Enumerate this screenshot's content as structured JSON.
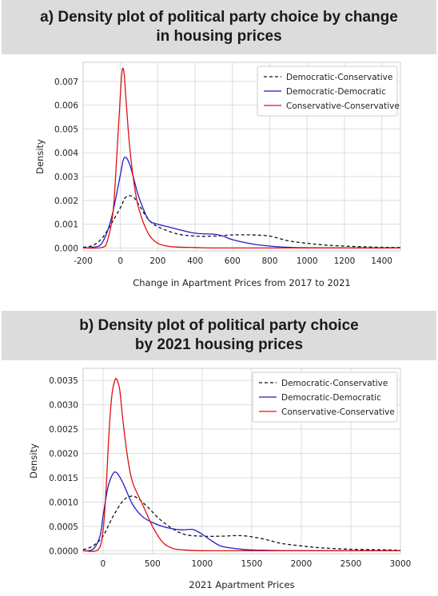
{
  "banners": {
    "a": [
      "a) Density plot of political party choice by change",
      "in housing prices"
    ],
    "b": [
      "b) Density plot of political party choice",
      "by 2021 housing prices"
    ]
  },
  "colors": {
    "dem_cons": "#111111",
    "dem_dem": "#1f1fc8",
    "cons_cons": "#e01010",
    "grid": "#dddddd",
    "banner_bg": "#dcdcdc"
  },
  "chart_data": [
    {
      "type": "line",
      "xlabel": "Change in Apartment Prices from 2017 to 2021",
      "ylabel": "Density",
      "xlim": [
        -200,
        1500
      ],
      "ylim": [
        -0.00012,
        0.0078
      ],
      "xticks": [
        -200,
        0,
        200,
        400,
        600,
        800,
        1000,
        1200,
        1400
      ],
      "yticks": [
        0.0,
        0.001,
        0.002,
        0.003,
        0.004,
        0.005,
        0.006,
        0.007
      ],
      "ytick_labels": [
        "0.000",
        "0.001",
        "0.002",
        "0.003",
        "0.004",
        "0.005",
        "0.006",
        "0.007"
      ],
      "grid": true,
      "legend": "top-right",
      "series": [
        {
          "name": "Democratic-Conservative",
          "style": "dashed",
          "x": [
            -200,
            -150,
            -100,
            -50,
            0,
            25,
            50,
            75,
            100,
            150,
            200,
            300,
            400,
            500,
            600,
            700,
            800,
            900,
            1000,
            1100,
            1200,
            1300,
            1400,
            1500
          ],
          "y": [
            3e-05,
            0.0001,
            0.0004,
            0.001,
            0.0017,
            0.0021,
            0.0022,
            0.0021,
            0.0018,
            0.0012,
            0.0009,
            0.0006,
            0.0005,
            0.0005,
            0.00055,
            0.00055,
            0.0005,
            0.0003,
            0.0002,
            0.00012,
            8e-05,
            5e-05,
            3e-05,
            2e-05
          ]
        },
        {
          "name": "Democratic-Democratic",
          "style": "solid",
          "x": [
            -200,
            -150,
            -100,
            -50,
            0,
            15,
            30,
            50,
            75,
            100,
            150,
            200,
            250,
            300,
            400,
            500,
            550,
            600,
            700,
            800,
            900,
            1000,
            1200,
            1500
          ],
          "y": [
            0.0,
            3e-05,
            0.0002,
            0.0012,
            0.0031,
            0.0037,
            0.0038,
            0.0035,
            0.0028,
            0.0021,
            0.0012,
            0.001,
            0.0009,
            0.0008,
            0.00062,
            0.00058,
            0.0005,
            0.00035,
            0.00018,
            8e-05,
            3e-05,
            1e-05,
            0.0,
            0.0
          ]
        },
        {
          "name": "Conservative-Conservative",
          "style": "solid",
          "x": [
            -200,
            -100,
            -70,
            -40,
            -20,
            0,
            10,
            20,
            30,
            50,
            75,
            100,
            150,
            200,
            250,
            300,
            400,
            500,
            700,
            1000,
            1500
          ],
          "y": [
            0.0,
            2e-05,
            0.0003,
            0.0015,
            0.0038,
            0.0065,
            0.0075,
            0.0073,
            0.0062,
            0.0042,
            0.0026,
            0.0016,
            0.0006,
            0.0002,
            8e-05,
            4e-05,
            2e-05,
            0.0,
            0.0,
            0.0,
            0.0
          ]
        }
      ]
    },
    {
      "type": "line",
      "xlabel": "2021 Apartment Prices",
      "ylabel": "Density",
      "xlim": [
        -200,
        3000
      ],
      "ylim": [
        -6e-05,
        0.00375
      ],
      "xticks": [
        0,
        500,
        1000,
        1500,
        2000,
        2500,
        3000
      ],
      "yticks": [
        0.0,
        0.0005,
        0.001,
        0.0015,
        0.002,
        0.0025,
        0.003,
        0.0035
      ],
      "ytick_labels": [
        "0.0000",
        "0.0005",
        "0.0010",
        "0.0015",
        "0.0020",
        "0.0025",
        "0.0030",
        "0.0035"
      ],
      "grid": true,
      "legend": "top-right",
      "series": [
        {
          "name": "Democratic-Conservative",
          "style": "dashed",
          "x": [
            -200,
            -100,
            0,
            100,
            200,
            280,
            350,
            450,
            600,
            800,
            1000,
            1200,
            1400,
            1600,
            1800,
            2000,
            2200,
            2500,
            2800,
            3000
          ],
          "y": [
            2e-05,
            0.0001,
            0.0003,
            0.0007,
            0.00102,
            0.00112,
            0.00108,
            0.0009,
            0.0006,
            0.00035,
            0.0003,
            0.0003,
            0.00031,
            0.00025,
            0.00015,
            0.0001,
            6e-05,
            3e-05,
            2e-05,
            1e-05
          ]
        },
        {
          "name": "Democratic-Democratic",
          "style": "solid",
          "x": [
            -200,
            -100,
            -30,
            0,
            50,
            100,
            140,
            200,
            300,
            400,
            500,
            600,
            700,
            800,
            900,
            950,
            1000,
            1100,
            1200,
            1400,
            1600,
            2000,
            3000
          ],
          "y": [
            0.0,
            3e-05,
            0.0003,
            0.0007,
            0.0013,
            0.00158,
            0.0016,
            0.0014,
            0.00095,
            0.0007,
            0.00058,
            0.0005,
            0.00045,
            0.00043,
            0.00044,
            0.0004,
            0.00034,
            0.0002,
            9e-05,
            3e-05,
            1e-05,
            0.0,
            0.0
          ]
        },
        {
          "name": "Conservative-Conservative",
          "style": "solid",
          "x": [
            -200,
            -50,
            0,
            30,
            60,
            90,
            120,
            140,
            170,
            200,
            250,
            300,
            400,
            500,
            600,
            700,
            800,
            1000,
            1500,
            3000
          ],
          "y": [
            0.0,
            2e-05,
            0.0004,
            0.0012,
            0.0024,
            0.0032,
            0.0035,
            0.00352,
            0.0033,
            0.0027,
            0.0019,
            0.0014,
            0.00095,
            0.0005,
            0.00018,
            5e-05,
            2e-05,
            0.0,
            0.0,
            0.0
          ]
        }
      ]
    }
  ]
}
